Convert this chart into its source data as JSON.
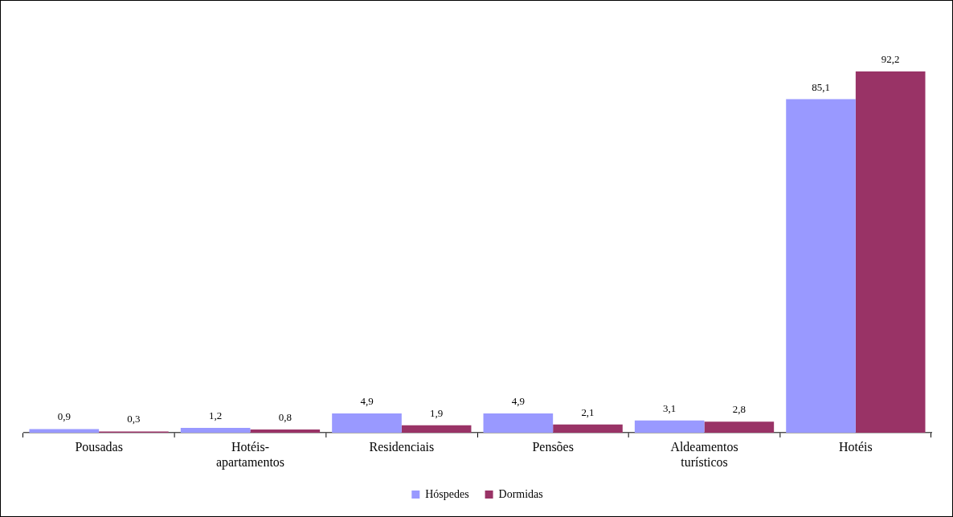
{
  "chart_data": {
    "type": "bar",
    "categories": [
      "Pousadas",
      "Hotéis-apartamentos",
      "Residenciais",
      "Pensões",
      "Aldeamentos turísticos",
      "Hotéis"
    ],
    "series": [
      {
        "name": "Hóspedes",
        "color": "#9999ff",
        "values": [
          0.9,
          1.2,
          4.9,
          4.9,
          3.1,
          85.1
        ],
        "value_labels": [
          "0,9",
          "1,2",
          "4,9",
          "4,9",
          "3,1",
          "85,1"
        ]
      },
      {
        "name": "Dormidas",
        "color": "#993366",
        "values": [
          0.3,
          0.8,
          1.9,
          2.1,
          2.8,
          92.2
        ],
        "value_labels": [
          "0,3",
          "0,8",
          "1,9",
          "2,1",
          "2,8",
          "92,2"
        ]
      }
    ],
    "legend": "bottom",
    "tick_labels": "x"
  }
}
